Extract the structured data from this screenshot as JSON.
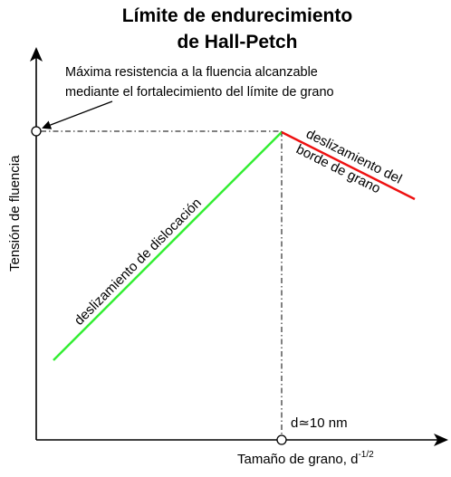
{
  "title": {
    "line1": "Límite de endurecimiento",
    "line2": "de Hall-Petch"
  },
  "annotation": {
    "line1": "Máxima resistencia a la fluencia alcanzable",
    "line2": "mediante el fortalecimiento del límite de grano"
  },
  "axes": {
    "y_label": "Tensión de fluencia",
    "x_label_main": "Tamaño de grano, d",
    "x_label_exp": "-1/2",
    "critical_label": "d≃10 nm"
  },
  "lines": {
    "dislocation_label": "deslizamiento de dislocación",
    "boundary_label_line1": "deslizamiento del",
    "boundary_label_line2": "borde de grano",
    "dislocation_color": "#33ee33",
    "boundary_color": "#ee1111"
  }
}
